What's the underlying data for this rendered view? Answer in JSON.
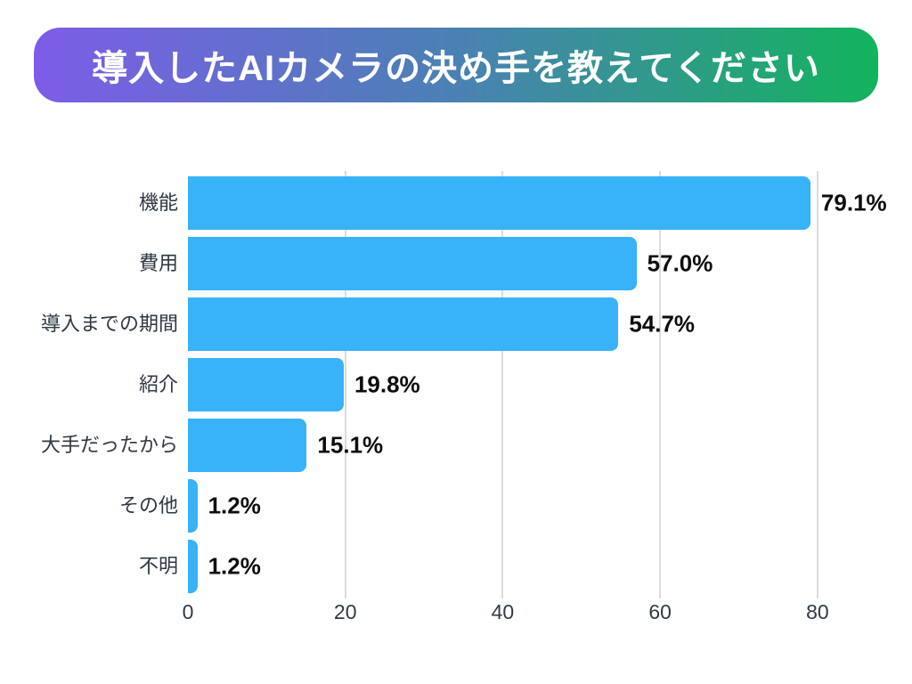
{
  "banner": {
    "gradient_left": "#7d5ce8",
    "gradient_mid": "#4a81b4",
    "gradient_right": "#12b45c",
    "text_color": "#ffffff"
  },
  "chart_data": {
    "type": "bar",
    "orientation": "horizontal",
    "title": "導入したAIカメラの決め手を教えてください",
    "categories": [
      "機能",
      "費用",
      "導入までの期間",
      "紹介",
      "大手だったから",
      "その他",
      "不明"
    ],
    "values": [
      79.1,
      57.0,
      54.7,
      19.8,
      15.1,
      1.2,
      1.2
    ],
    "value_labels": [
      "79.1%",
      "57.0%",
      "54.7%",
      "19.8%",
      "15.1%",
      "1.2%",
      "1.2%"
    ],
    "x_ticks": [
      "0",
      "20",
      "40",
      "60",
      "80"
    ],
    "x_tick_values": [
      0,
      20,
      40,
      60,
      80
    ],
    "xlim": [
      0,
      84.2
    ],
    "xlabel": "",
    "ylabel": "",
    "bar_color": "#38b2f8",
    "grid": true,
    "gridline_color": "#d9dce0",
    "label_color": "#2e3742",
    "value_label_color": "#0d0d0d",
    "legend": "none"
  }
}
